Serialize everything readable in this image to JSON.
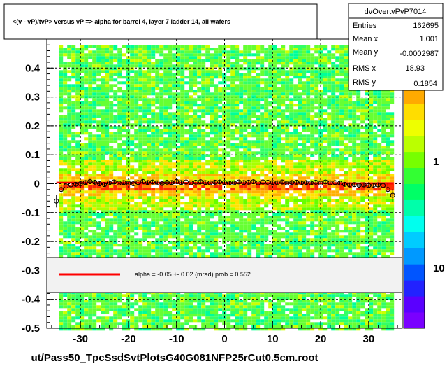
{
  "title": "<(v - vP)/tvP> versus   vP => alpha for barrel 4, layer 7 ladder 14, all wafers",
  "footer": "ut/Pass50_TpcSsdSvtPlotsG40G081NFP25rCut0.5cm.root",
  "stats": {
    "name": "dvOvertvPvP7014",
    "rows": [
      {
        "label": "Entries",
        "value": "162695"
      },
      {
        "label": "Mean x",
        "value": "1.001"
      },
      {
        "label": "Mean y",
        "value": "-0.0002987"
      },
      {
        "label": "RMS x",
        "value": "18.93"
      },
      {
        "label": "RMS y",
        "value": "0.1854"
      }
    ]
  },
  "fit": {
    "text": "alpha =   -0.05 +-  0.02 (mrad) prob = 0.552",
    "line_color": "#ff0000"
  },
  "colors": {
    "frame": "#000000",
    "fit_line": "#ff0000",
    "grid": "#000000"
  },
  "chart_data": {
    "type": "heatmap",
    "title": "<(v - vP)/tvP> versus   vP => alpha for barrel 4, layer 7 ladder 14, all wafers",
    "xlim": [
      -37,
      37
    ],
    "ylim": [
      -0.5,
      0.5
    ],
    "x_ticks": [
      -30,
      -20,
      -10,
      0,
      10,
      20,
      30
    ],
    "y_ticks": [
      -0.5,
      -0.4,
      -0.3,
      -0.2,
      -0.1,
      0,
      0.1,
      0.2,
      0.3,
      0.4
    ],
    "grid": true,
    "colorbar": {
      "scale": "log",
      "tick_labels": [
        "1",
        "10"
      ]
    },
    "fit_line": {
      "x": [
        -35,
        35
      ],
      "y": [
        0.004,
        0.001
      ]
    },
    "profile_points": {
      "x": [
        -35,
        -34,
        -33,
        -32,
        -31,
        -30,
        -29,
        -28,
        -27,
        -26,
        -25,
        -24,
        -23,
        -22,
        -21,
        -20,
        -19,
        -18,
        -17,
        -16,
        -15,
        -14,
        -13,
        -12,
        -11,
        -10,
        -9,
        -8,
        -7,
        -6,
        -5,
        -4,
        -3,
        -2,
        -1,
        0,
        1,
        2,
        3,
        4,
        5,
        6,
        7,
        8,
        9,
        10,
        11,
        12,
        13,
        14,
        15,
        16,
        17,
        18,
        19,
        20,
        21,
        22,
        23,
        24,
        25,
        26,
        27,
        28,
        29,
        30,
        31,
        32,
        33,
        34,
        35
      ],
      "y": [
        -0.06,
        -0.02,
        -0.008,
        -0.004,
        -0.002,
        0.0,
        0.004,
        0.008,
        0.005,
        0.0,
        -0.003,
        0.003,
        0.006,
        0.002,
        0.004,
        0.002,
        0.0,
        0.004,
        0.008,
        0.004,
        0.006,
        0.003,
        0.001,
        0.005,
        0.004,
        0.008,
        0.004,
        0.006,
        0.003,
        0.005,
        0.007,
        0.004,
        0.003,
        0.005,
        0.006,
        0.004,
        0.002,
        0.003,
        0.006,
        0.004,
        0.005,
        0.007,
        0.003,
        0.006,
        0.005,
        0.004,
        0.003,
        0.006,
        0.002,
        0.004,
        0.005,
        0.003,
        0.004,
        0.003,
        0.005,
        0.002,
        0.006,
        0.003,
        0.004,
        0.002,
        -0.002,
        -0.004,
        -0.003,
        -0.005,
        -0.004,
        -0.006,
        -0.005,
        -0.004,
        -0.006,
        -0.02,
        -0.04
      ]
    }
  }
}
